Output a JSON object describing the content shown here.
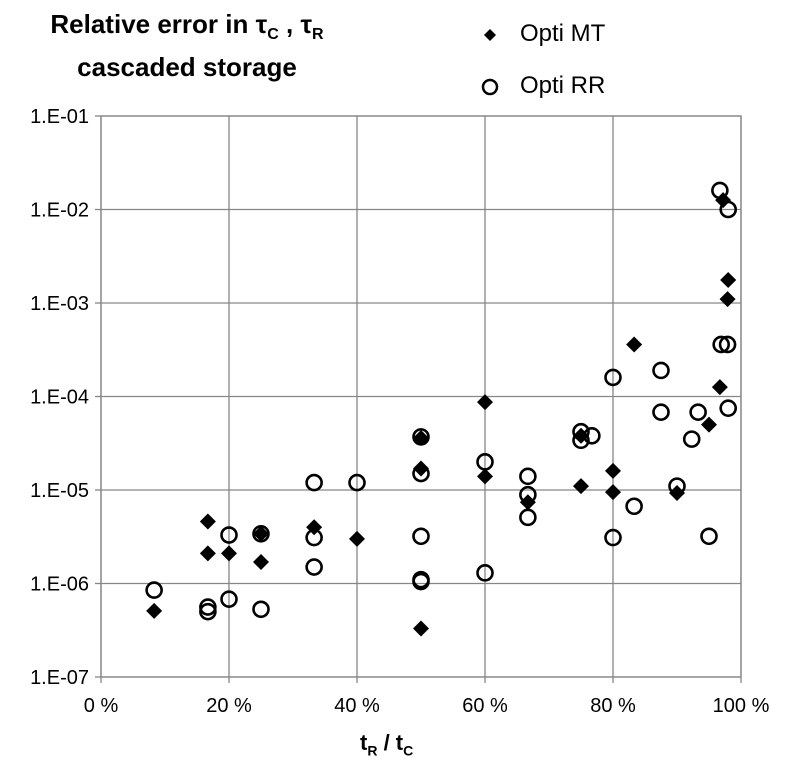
{
  "chart_data": {
    "type": "scatter",
    "title": {
      "line1_prefix": "Relative error in ",
      "tau": "τ",
      "sub_c": "C",
      "sep": " , ",
      "sub_r": "R",
      "line2": "cascaded storage"
    },
    "xlabel": {
      "t": "t",
      "sub_r": "R",
      "slash": " / ",
      "sub_c": "C"
    },
    "ylabel": "",
    "xlim": [
      0,
      100
    ],
    "ylim": [
      1e-07,
      0.1
    ],
    "yscale": "log",
    "grid": true,
    "legend_position": "top-right",
    "x_ticks": [
      0,
      20,
      40,
      60,
      80,
      100
    ],
    "x_tick_labels": [
      "0 %",
      "20 %",
      "40 %",
      "60 %",
      "80 %",
      "100 %"
    ],
    "y_ticks": [
      1e-07,
      1e-06,
      1e-05,
      0.0001,
      0.001,
      0.01,
      0.1
    ],
    "y_tick_labels": [
      "1.E-07",
      "1.E-06",
      "1.E-05",
      "1.E-04",
      "1.E-03",
      "1.E-02",
      "1.E-01"
    ],
    "series": [
      {
        "name": "Opti MT",
        "marker": "diamond",
        "color": "#000000",
        "points": [
          [
            8.3,
            5.1e-07
          ],
          [
            16.7,
            4.6e-06
          ],
          [
            16.7,
            2.1e-06
          ],
          [
            20,
            2.1e-06
          ],
          [
            25,
            1.7e-06
          ],
          [
            25,
            3.4e-06
          ],
          [
            33.3,
            4e-06
          ],
          [
            40,
            3e-06
          ],
          [
            50,
            3.3e-07
          ],
          [
            50,
            1.7e-05
          ],
          [
            50,
            3.6e-05
          ],
          [
            60,
            8.7e-05
          ],
          [
            60,
            1.4e-05
          ],
          [
            66.7,
            7.4e-06
          ],
          [
            75,
            1.1e-05
          ],
          [
            75,
            3.8e-05
          ],
          [
            80,
            1.6e-05
          ],
          [
            80,
            9.5e-06
          ],
          [
            83.3,
            0.00036
          ],
          [
            90,
            9.3e-06
          ],
          [
            95,
            5e-05
          ],
          [
            96.7,
            0.000126
          ],
          [
            97.2,
            0.0126
          ],
          [
            97.9,
            0.0011
          ],
          [
            98,
            0.00176
          ]
        ]
      },
      {
        "name": "Opti RR",
        "marker": "circle",
        "color": "#000000",
        "points": [
          [
            8.3,
            8.5e-07
          ],
          [
            16.7,
            5.6e-07
          ],
          [
            16.7,
            5e-07
          ],
          [
            20,
            3.3e-06
          ],
          [
            20,
            6.8e-07
          ],
          [
            25,
            3.4e-06
          ],
          [
            25,
            5.3e-07
          ],
          [
            33.3,
            1.2e-05
          ],
          [
            33.3,
            3.1e-06
          ],
          [
            33.3,
            1.5e-06
          ],
          [
            40,
            1.2e-05
          ],
          [
            50,
            3.7e-05
          ],
          [
            50,
            1.5e-05
          ],
          [
            50,
            3.2e-06
          ],
          [
            50,
            1.1e-06
          ],
          [
            50,
            1.05e-06
          ],
          [
            60,
            2e-05
          ],
          [
            60,
            1.3e-06
          ],
          [
            66.7,
            1.4e-05
          ],
          [
            66.7,
            8.9e-06
          ],
          [
            66.7,
            5.1e-06
          ],
          [
            75,
            4.2e-05
          ],
          [
            75,
            3.4e-05
          ],
          [
            76.7,
            3.8e-05
          ],
          [
            80,
            0.00016
          ],
          [
            80,
            3.1e-06
          ],
          [
            83.3,
            6.7e-06
          ],
          [
            87.5,
            0.00019
          ],
          [
            87.5,
            6.8e-05
          ],
          [
            90,
            1.1e-05
          ],
          [
            92.3,
            3.5e-05
          ],
          [
            93.3,
            6.8e-05
          ],
          [
            95,
            3.2e-06
          ],
          [
            96.7,
            0.016
          ],
          [
            98,
            0.01
          ],
          [
            96.9,
            0.00036
          ],
          [
            97.9,
            0.00036
          ],
          [
            98,
            7.5e-05
          ]
        ]
      }
    ]
  }
}
